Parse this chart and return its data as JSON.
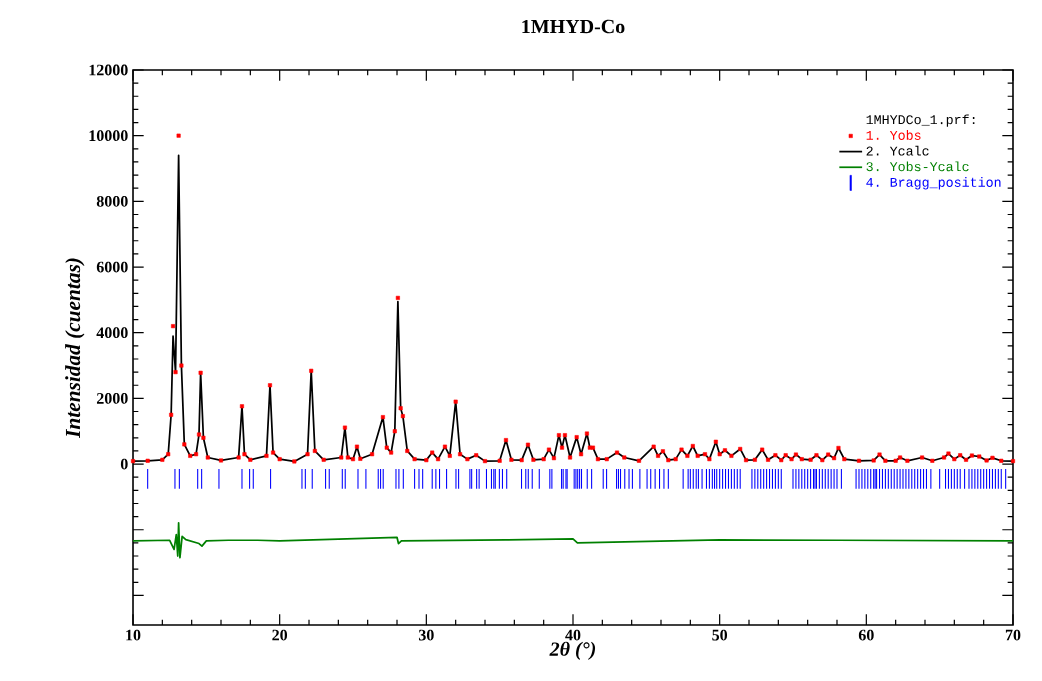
{
  "chart_data": {
    "type": "line",
    "title": "1MHYD-Co",
    "xlabel": "2θ (°)",
    "ylabel": "Intensidad (cuentas)",
    "legend_title": "1MHYDCo_1.prf:",
    "legend": "top right",
    "xlim": [
      10,
      70
    ],
    "xticks": [
      10,
      20,
      30,
      40,
      50,
      60,
      70
    ],
    "ylim": [
      -4900,
      12000
    ],
    "yticks": [
      {
        "value": -4000,
        "label": null
      },
      {
        "value": -2000,
        "label": null
      },
      0,
      2000,
      4000,
      6000,
      8000,
      10000,
      12000
    ],
    "x": [
      10.0,
      11.0,
      12.0,
      12.4,
      12.6,
      12.73,
      12.9,
      13.11,
      13.3,
      13.5,
      13.9,
      14.3,
      14.5,
      14.61,
      14.8,
      15.1,
      16.0,
      17.2,
      17.43,
      17.6,
      18.0,
      19.1,
      19.34,
      19.55,
      20.0,
      21.0,
      21.9,
      22.15,
      22.4,
      23.0,
      24.2,
      24.45,
      24.65,
      25.0,
      25.27,
      25.5,
      26.3,
      27.04,
      27.3,
      27.6,
      27.85,
      28.06,
      28.25,
      28.4,
      28.7,
      29.2,
      30.0,
      30.4,
      30.8,
      31.27,
      31.6,
      32.0,
      32.3,
      32.8,
      33.4,
      34.0,
      35.0,
      35.43,
      35.8,
      36.5,
      36.93,
      37.3,
      38.0,
      38.36,
      38.7,
      39.04,
      39.25,
      39.45,
      39.8,
      40.25,
      40.55,
      40.95,
      41.15,
      41.36,
      41.7,
      42.3,
      43.0,
      43.5,
      44.5,
      45.5,
      45.8,
      46.13,
      46.5,
      47.0,
      47.4,
      47.8,
      48.17,
      48.5,
      49.0,
      49.3,
      49.74,
      50.0,
      50.36,
      50.8,
      51.4,
      51.8,
      52.4,
      52.9,
      53.3,
      53.8,
      54.2,
      54.5,
      54.9,
      55.2,
      55.6,
      56.2,
      56.6,
      57.0,
      57.4,
      57.8,
      58.1,
      58.5,
      59.5,
      60.5,
      60.9,
      61.3,
      62.0,
      62.3,
      62.8,
      63.8,
      64.5,
      65.3,
      65.6,
      66.0,
      66.4,
      66.8,
      67.2,
      67.7,
      68.2,
      68.6,
      69.2,
      70.0
    ],
    "series": [
      {
        "name": "1. Yobs",
        "type": "scatter",
        "marker": "square",
        "color": "#ff0000",
        "values": [
          90,
          100,
          130,
          300,
          1500,
          4200,
          2800,
          10000,
          3000,
          600,
          250,
          300,
          900,
          2780,
          800,
          200,
          110,
          200,
          1760,
          300,
          130,
          250,
          2400,
          350,
          150,
          80,
          300,
          2840,
          400,
          130,
          200,
          1110,
          200,
          150,
          530,
          160,
          300,
          1430,
          500,
          350,
          1000,
          5060,
          1700,
          1460,
          400,
          150,
          120,
          350,
          150,
          530,
          250,
          1900,
          300,
          150,
          270,
          90,
          100,
          730,
          130,
          120,
          590,
          130,
          150,
          440,
          180,
          880,
          500,
          880,
          200,
          820,
          300,
          930,
          500,
          500,
          150,
          150,
          350,
          200,
          100,
          530,
          250,
          390,
          120,
          150,
          440,
          250,
          550,
          250,
          300,
          150,
          680,
          300,
          420,
          250,
          460,
          120,
          130,
          440,
          130,
          270,
          120,
          270,
          150,
          290,
          150,
          130,
          270,
          120,
          290,
          180,
          490,
          150,
          100,
          110,
          290,
          100,
          100,
          200,
          100,
          200,
          100,
          200,
          320,
          150,
          270,
          130,
          260,
          230,
          110,
          190,
          100,
          90
        ]
      },
      {
        "name": "2. Ycalc",
        "color": "#000000",
        "values": [
          90,
          100,
          130,
          300,
          1500,
          3900,
          2800,
          9400,
          3000,
          600,
          250,
          300,
          900,
          2780,
          800,
          200,
          110,
          200,
          1760,
          300,
          130,
          250,
          2400,
          350,
          150,
          80,
          300,
          2840,
          400,
          130,
          200,
          1110,
          200,
          150,
          530,
          160,
          300,
          1430,
          500,
          350,
          1000,
          4950,
          1700,
          1460,
          400,
          150,
          120,
          350,
          150,
          530,
          250,
          1900,
          300,
          150,
          270,
          90,
          100,
          730,
          130,
          120,
          590,
          130,
          150,
          440,
          180,
          880,
          500,
          880,
          200,
          820,
          300,
          930,
          500,
          500,
          150,
          150,
          350,
          200,
          100,
          530,
          250,
          390,
          120,
          150,
          440,
          250,
          550,
          250,
          300,
          150,
          680,
          300,
          420,
          250,
          460,
          120,
          130,
          440,
          130,
          270,
          120,
          270,
          150,
          290,
          150,
          130,
          270,
          120,
          290,
          180,
          490,
          150,
          100,
          110,
          290,
          100,
          100,
          200,
          100,
          200,
          100,
          200,
          320,
          150,
          270,
          130,
          260,
          230,
          110,
          190,
          100,
          90
        ]
      },
      {
        "name": "3. Yobs-Ycalc",
        "color": "#008000",
        "x": [
          10,
          12.5,
          12.8,
          12.95,
          13.05,
          13.11,
          13.2,
          13.35,
          13.6,
          14.5,
          14.7,
          15.0,
          16.5,
          18.5,
          20.0,
          28.0,
          28.1,
          28.3,
          35.4,
          40.0,
          40.3,
          50.0,
          58.0,
          70.0
        ],
        "values": [
          -2340,
          -2320,
          -2600,
          -2150,
          -2800,
          -1790,
          -2850,
          -2200,
          -2300,
          -2420,
          -2500,
          -2340,
          -2320,
          -2320,
          -2340,
          -2230,
          -2420,
          -2340,
          -2310,
          -2280,
          -2400,
          -2310,
          -2320,
          -2340
        ]
      },
      {
        "name": "4. Bragg_position",
        "type": "bar",
        "color": "#0000ff",
        "x": [
          11.0,
          12.86,
          13.16,
          14.41,
          14.68,
          15.86,
          17.43,
          17.95,
          18.2,
          19.38,
          21.52,
          21.75,
          22.22,
          23.13,
          23.38,
          24.27,
          24.47,
          25.34,
          25.88,
          26.72,
          26.88,
          27.06,
          27.93,
          28.13,
          28.43,
          29.2,
          29.5,
          29.75,
          30.4,
          30.65,
          30.9,
          31.38,
          32.02,
          32.2,
          32.97,
          33.09,
          33.43,
          33.6,
          34.1,
          34.44,
          34.6,
          34.7,
          34.98,
          35.19,
          35.48,
          36.49,
          36.78,
          36.95,
          37.22,
          37.7,
          38.42,
          38.56,
          39.22,
          39.33,
          39.52,
          39.6,
          40.08,
          40.2,
          40.32,
          40.45,
          40.58,
          40.97,
          41.27,
          42.06,
          42.29,
          42.97,
          43.1,
          43.24,
          43.53,
          43.82,
          44.05,
          44.56,
          45.05,
          45.3,
          45.6,
          45.9,
          46.2,
          46.5,
          47.51,
          47.85,
          48.0,
          48.2,
          48.4,
          48.55,
          48.8,
          49.1,
          49.3,
          49.5,
          49.65,
          49.8,
          50.0,
          50.2,
          50.4,
          50.6,
          50.8,
          51.0,
          51.2,
          51.4,
          52.2,
          52.4,
          52.6,
          52.8,
          53.0,
          53.2,
          53.4,
          53.6,
          53.8,
          54.0,
          54.2,
          55.0,
          55.2,
          55.4,
          55.6,
          55.8,
          56.0,
          56.2,
          56.4,
          56.5,
          56.6,
          56.8,
          57.0,
          57.2,
          57.4,
          57.6,
          57.8,
          58.0,
          58.3,
          59.3,
          59.5,
          59.7,
          59.9,
          60.1,
          60.3,
          60.5,
          60.6,
          60.7,
          60.9,
          61.1,
          61.3,
          61.5,
          61.7,
          61.9,
          62.1,
          62.3,
          62.5,
          62.7,
          62.9,
          63.1,
          63.3,
          63.5,
          63.7,
          63.9,
          64.1,
          64.4,
          65.0,
          65.4,
          65.6,
          65.8,
          66.0,
          66.2,
          66.4,
          66.7,
          67.0,
          67.2,
          67.4,
          67.6,
          67.8,
          68.0,
          68.2,
          68.4,
          68.6,
          68.8,
          69.0,
          69.2,
          69.5
        ],
        "base": [
          -750,
          -750,
          -750,
          -750,
          -750,
          -750,
          -750,
          -750,
          -750,
          -750,
          -750,
          -750,
          -750,
          -750,
          -750,
          -750,
          -750,
          -750,
          -750,
          -750,
          -750,
          -750,
          -750,
          -750,
          -750,
          -750,
          -750,
          -750,
          -750,
          -750,
          -750,
          -750,
          -750,
          -750,
          -750,
          -750,
          -750,
          -750,
          -750,
          -750,
          -750,
          -750,
          -750,
          -750,
          -750,
          -750,
          -750,
          -750,
          -750,
          -750,
          -750,
          -750,
          -750,
          -750,
          -750,
          -750,
          -750,
          -750,
          -750,
          -750,
          -750,
          -750,
          -750,
          -750,
          -750,
          -750,
          -750,
          -750,
          -750,
          -750,
          -750,
          -750,
          -750,
          -750,
          -750,
          -750,
          -750,
          -750,
          -750,
          -750,
          -750,
          -750,
          -750,
          -750,
          -750,
          -750,
          -750,
          -750,
          -750,
          -750,
          -750,
          -750,
          -750,
          -750,
          -750,
          -750,
          -750,
          -750,
          -750,
          -750,
          -750,
          -750,
          -750,
          -750,
          -750,
          -750,
          -750,
          -750,
          -750,
          -750,
          -750,
          -750,
          -750,
          -750,
          -750,
          -750,
          -750,
          -750,
          -750,
          -750,
          -750,
          -750,
          -750,
          -750,
          -750,
          -750,
          -750,
          -750,
          -750,
          -750,
          -750,
          -750,
          -750,
          -750,
          -750,
          -750,
          -750,
          -750,
          -750,
          -750,
          -750,
          -750,
          -750,
          -750,
          -750,
          -750,
          -750,
          -750,
          -750,
          -750,
          -750,
          -750,
          -750,
          -750,
          -750,
          -750,
          -750,
          -750,
          -750,
          -750,
          -750,
          -750,
          -750,
          -750,
          -750,
          -750,
          -750,
          -750,
          -750,
          -750,
          -750,
          -750,
          -750,
          -750,
          -750
        ],
        "values": [
          600,
          600,
          600,
          600,
          600,
          600,
          600,
          600,
          600,
          600,
          600,
          600,
          600,
          600,
          600,
          600,
          600,
          600,
          600,
          600,
          600,
          600,
          600,
          600,
          600,
          600,
          600,
          600,
          600,
          600,
          600,
          600,
          600,
          600,
          600,
          600,
          600,
          600,
          600,
          600,
          600,
          600,
          600,
          600,
          600,
          600,
          600,
          600,
          600,
          600,
          600,
          600,
          600,
          600,
          600,
          600,
          600,
          600,
          600,
          600,
          600,
          600,
          600,
          600,
          600,
          600,
          600,
          600,
          600,
          600,
          600,
          600,
          600,
          600,
          600,
          600,
          600,
          600,
          600,
          600,
          600,
          600,
          600,
          600,
          600,
          600,
          600,
          600,
          600,
          600,
          600,
          600,
          600,
          600,
          600,
          600,
          600,
          600,
          600,
          600,
          600,
          600,
          600,
          600,
          600,
          600,
          600,
          600,
          600,
          600,
          600,
          600,
          600,
          600,
          600,
          600,
          600,
          600,
          600,
          600,
          600,
          600,
          600,
          600,
          600,
          600,
          600,
          600,
          600,
          600,
          600,
          600,
          600,
          600,
          600,
          600,
          600,
          600,
          600,
          600,
          600,
          600,
          600,
          600,
          600,
          600,
          600,
          600,
          600,
          600,
          600,
          600,
          600,
          600,
          600,
          600,
          600,
          600,
          600,
          600,
          600,
          600,
          600,
          600,
          600,
          600,
          600,
          600,
          600,
          600,
          600,
          600,
          600,
          600,
          600
        ]
      }
    ]
  }
}
